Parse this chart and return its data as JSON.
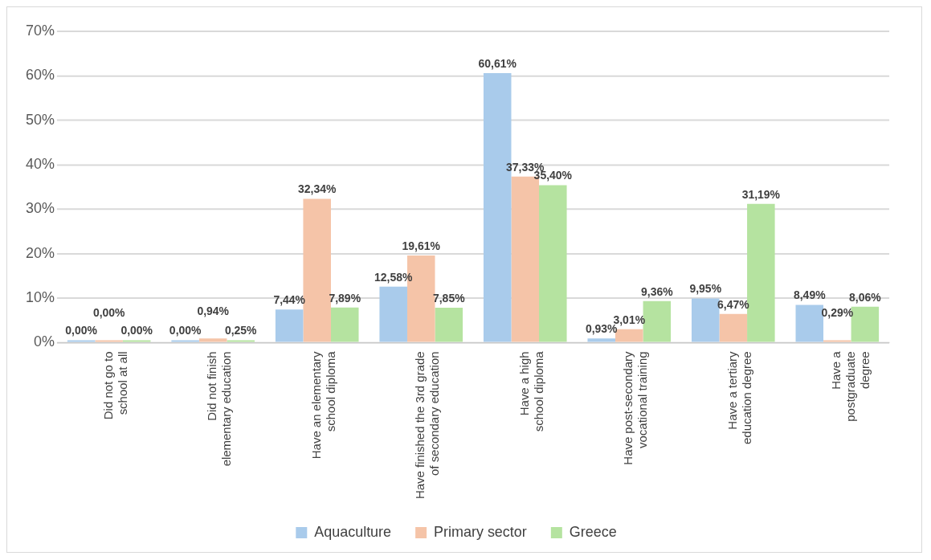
{
  "chart_data": {
    "type": "bar",
    "categories": [
      "Did not go to school at all",
      "Did not finish elementary education",
      "Have an elementary school diploma",
      "Have finished the 3rd grade of secondary education",
      "Have a high school diploma",
      "Have post-secondary vocational training",
      "Have a tertiary education degree",
      "Have a postgraduate degree"
    ],
    "series": [
      {
        "name": "Aquaculture",
        "color": "#a9cbeb",
        "values": [
          0,
          0,
          7.44,
          12.58,
          60.61,
          0.93,
          9.95,
          8.49
        ],
        "value_labels": [
          "0,00%",
          "0,00%",
          "7,44%",
          "12,58%",
          "60,61%",
          "0,93%",
          "9,95%",
          "8,49%"
        ]
      },
      {
        "name": "Primary sector",
        "color": "#f5c4a8",
        "values": [
          0,
          0.94,
          32.34,
          19.61,
          37.33,
          3.01,
          6.47,
          0.29
        ],
        "value_labels": [
          "0,00%",
          "0,94%",
          "32,34%",
          "19,61%",
          "37,33%",
          "3,01%",
          "6,47%",
          "0,29%"
        ]
      },
      {
        "name": "Greece",
        "color": "#b5e3a0",
        "values": [
          0,
          0.25,
          7.89,
          7.85,
          35.4,
          9.36,
          31.19,
          8.06
        ],
        "value_labels": [
          "0,00%",
          "0,25%",
          "7,89%",
          "7,85%",
          "35,40%",
          "9,36%",
          "31,19%",
          "8,06%"
        ]
      }
    ],
    "ylim": [
      0,
      70
    ],
    "yticks": [
      {
        "value": 0,
        "label": "0%"
      },
      {
        "value": 10,
        "label": "10%"
      },
      {
        "value": 20,
        "label": "20%"
      },
      {
        "value": 30,
        "label": "30%"
      },
      {
        "value": 40,
        "label": "40%"
      },
      {
        "value": 50,
        "label": "50%"
      },
      {
        "value": 60,
        "label": "60%"
      },
      {
        "value": 70,
        "label": "70%"
      }
    ],
    "grid": "y",
    "legend": "bottom"
  }
}
